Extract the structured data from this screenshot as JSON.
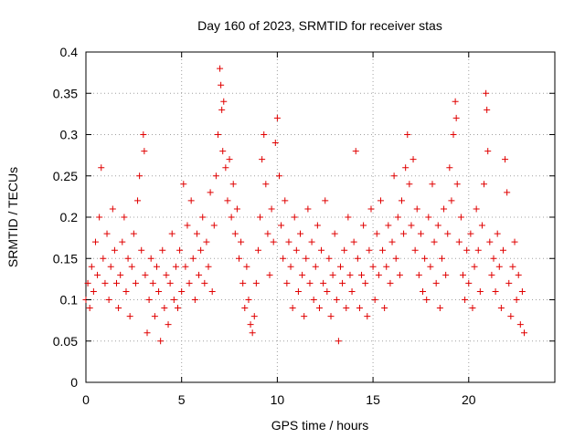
{
  "chart_data": {
    "type": "scatter",
    "title": "Day 160 of 2023, SRMTID for receiver stas",
    "xlabel": "GPS time / hours",
    "ylabel": "SRMTID / TECUs",
    "xlim": [
      0,
      24.5
    ],
    "ylim": [
      0,
      0.4
    ],
    "xticks": [
      0,
      5,
      10,
      15,
      20
    ],
    "xtick_labels": [
      "0",
      "5",
      "10",
      "15",
      "20"
    ],
    "yticks": [
      0,
      0.05,
      0.1,
      0.15,
      0.2,
      0.25,
      0.3,
      0.35,
      0.4
    ],
    "ytick_labels": [
      "0",
      "0.05",
      "0.1",
      "0.15",
      "0.2",
      "0.25",
      "0.3",
      "0.35",
      "0.4"
    ],
    "grid": true,
    "marker": "+",
    "color": "#e00000",
    "series": [
      {
        "name": "SRMTID",
        "points": [
          [
            0.0,
            0.1
          ],
          [
            0.1,
            0.12
          ],
          [
            0.2,
            0.09
          ],
          [
            0.3,
            0.14
          ],
          [
            0.4,
            0.11
          ],
          [
            0.5,
            0.17
          ],
          [
            0.6,
            0.13
          ],
          [
            0.7,
            0.2
          ],
          [
            0.8,
            0.26
          ],
          [
            0.9,
            0.15
          ],
          [
            1.0,
            0.12
          ],
          [
            1.1,
            0.18
          ],
          [
            1.2,
            0.1
          ],
          [
            1.3,
            0.14
          ],
          [
            1.4,
            0.21
          ],
          [
            1.5,
            0.16
          ],
          [
            1.6,
            0.12
          ],
          [
            1.7,
            0.09
          ],
          [
            1.8,
            0.13
          ],
          [
            1.9,
            0.17
          ],
          [
            2.0,
            0.2
          ],
          [
            2.1,
            0.11
          ],
          [
            2.2,
            0.15
          ],
          [
            2.3,
            0.08
          ],
          [
            2.4,
            0.14
          ],
          [
            2.5,
            0.18
          ],
          [
            2.6,
            0.12
          ],
          [
            2.7,
            0.22
          ],
          [
            2.8,
            0.25
          ],
          [
            2.9,
            0.16
          ],
          [
            3.0,
            0.3
          ],
          [
            3.05,
            0.28
          ],
          [
            3.1,
            0.13
          ],
          [
            3.2,
            0.06
          ],
          [
            3.3,
            0.1
          ],
          [
            3.4,
            0.15
          ],
          [
            3.5,
            0.12
          ],
          [
            3.6,
            0.08
          ],
          [
            3.7,
            0.14
          ],
          [
            3.8,
            0.11
          ],
          [
            3.9,
            0.05
          ],
          [
            4.0,
            0.16
          ],
          [
            4.1,
            0.09
          ],
          [
            4.2,
            0.13
          ],
          [
            4.3,
            0.07
          ],
          [
            4.4,
            0.12
          ],
          [
            4.5,
            0.18
          ],
          [
            4.6,
            0.1
          ],
          [
            4.7,
            0.14
          ],
          [
            4.8,
            0.09
          ],
          [
            4.9,
            0.16
          ],
          [
            5.0,
            0.11
          ],
          [
            5.1,
            0.24
          ],
          [
            5.2,
            0.14
          ],
          [
            5.3,
            0.19
          ],
          [
            5.4,
            0.12
          ],
          [
            5.5,
            0.22
          ],
          [
            5.6,
            0.15
          ],
          [
            5.7,
            0.1
          ],
          [
            5.8,
            0.18
          ],
          [
            5.9,
            0.13
          ],
          [
            6.0,
            0.16
          ],
          [
            6.1,
            0.2
          ],
          [
            6.2,
            0.12
          ],
          [
            6.3,
            0.17
          ],
          [
            6.4,
            0.14
          ],
          [
            6.5,
            0.23
          ],
          [
            6.6,
            0.11
          ],
          [
            6.7,
            0.19
          ],
          [
            6.8,
            0.25
          ],
          [
            6.9,
            0.3
          ],
          [
            7.0,
            0.38
          ],
          [
            7.05,
            0.36
          ],
          [
            7.1,
            0.33
          ],
          [
            7.15,
            0.28
          ],
          [
            7.2,
            0.34
          ],
          [
            7.3,
            0.26
          ],
          [
            7.4,
            0.22
          ],
          [
            7.5,
            0.27
          ],
          [
            7.6,
            0.2
          ],
          [
            7.7,
            0.24
          ],
          [
            7.8,
            0.18
          ],
          [
            7.9,
            0.21
          ],
          [
            8.0,
            0.15
          ],
          [
            8.1,
            0.17
          ],
          [
            8.2,
            0.12
          ],
          [
            8.3,
            0.09
          ],
          [
            8.4,
            0.14
          ],
          [
            8.5,
            0.1
          ],
          [
            8.6,
            0.07
          ],
          [
            8.7,
            0.06
          ],
          [
            8.8,
            0.08
          ],
          [
            8.9,
            0.12
          ],
          [
            9.0,
            0.16
          ],
          [
            9.1,
            0.2
          ],
          [
            9.2,
            0.27
          ],
          [
            9.3,
            0.3
          ],
          [
            9.4,
            0.24
          ],
          [
            9.5,
            0.18
          ],
          [
            9.6,
            0.13
          ],
          [
            9.7,
            0.21
          ],
          [
            9.8,
            0.17
          ],
          [
            9.9,
            0.29
          ],
          [
            10.0,
            0.32
          ],
          [
            10.1,
            0.25
          ],
          [
            10.2,
            0.19
          ],
          [
            10.3,
            0.15
          ],
          [
            10.4,
            0.22
          ],
          [
            10.5,
            0.12
          ],
          [
            10.6,
            0.17
          ],
          [
            10.7,
            0.14
          ],
          [
            10.8,
            0.09
          ],
          [
            10.9,
            0.2
          ],
          [
            11.0,
            0.16
          ],
          [
            11.1,
            0.11
          ],
          [
            11.2,
            0.18
          ],
          [
            11.3,
            0.13
          ],
          [
            11.4,
            0.08
          ],
          [
            11.5,
            0.15
          ],
          [
            11.6,
            0.21
          ],
          [
            11.7,
            0.12
          ],
          [
            11.8,
            0.17
          ],
          [
            11.9,
            0.1
          ],
          [
            12.0,
            0.14
          ],
          [
            12.1,
            0.19
          ],
          [
            12.2,
            0.09
          ],
          [
            12.3,
            0.16
          ],
          [
            12.4,
            0.12
          ],
          [
            12.5,
            0.22
          ],
          [
            12.6,
            0.11
          ],
          [
            12.7,
            0.15
          ],
          [
            12.8,
            0.08
          ],
          [
            12.9,
            0.13
          ],
          [
            13.0,
            0.18
          ],
          [
            13.1,
            0.1
          ],
          [
            13.2,
            0.05
          ],
          [
            13.3,
            0.14
          ],
          [
            13.4,
            0.12
          ],
          [
            13.5,
            0.16
          ],
          [
            13.6,
            0.09
          ],
          [
            13.7,
            0.2
          ],
          [
            13.8,
            0.13
          ],
          [
            13.9,
            0.11
          ],
          [
            14.0,
            0.17
          ],
          [
            14.1,
            0.28
          ],
          [
            14.2,
            0.15
          ],
          [
            14.3,
            0.09
          ],
          [
            14.4,
            0.13
          ],
          [
            14.5,
            0.19
          ],
          [
            14.6,
            0.12
          ],
          [
            14.7,
            0.08
          ],
          [
            14.8,
            0.16
          ],
          [
            14.9,
            0.21
          ],
          [
            15.0,
            0.14
          ],
          [
            15.1,
            0.1
          ],
          [
            15.2,
            0.18
          ],
          [
            15.3,
            0.13
          ],
          [
            15.4,
            0.22
          ],
          [
            15.5,
            0.16
          ],
          [
            15.6,
            0.09
          ],
          [
            15.7,
            0.14
          ],
          [
            15.8,
            0.19
          ],
          [
            15.9,
            0.12
          ],
          [
            16.0,
            0.17
          ],
          [
            16.1,
            0.25
          ],
          [
            16.2,
            0.15
          ],
          [
            16.3,
            0.2
          ],
          [
            16.4,
            0.13
          ],
          [
            16.5,
            0.22
          ],
          [
            16.6,
            0.18
          ],
          [
            16.7,
            0.26
          ],
          [
            16.8,
            0.3
          ],
          [
            16.9,
            0.24
          ],
          [
            17.0,
            0.19
          ],
          [
            17.1,
            0.27
          ],
          [
            17.2,
            0.16
          ],
          [
            17.3,
            0.21
          ],
          [
            17.4,
            0.13
          ],
          [
            17.5,
            0.18
          ],
          [
            17.6,
            0.11
          ],
          [
            17.7,
            0.15
          ],
          [
            17.8,
            0.1
          ],
          [
            17.9,
            0.2
          ],
          [
            18.0,
            0.14
          ],
          [
            18.1,
            0.24
          ],
          [
            18.2,
            0.17
          ],
          [
            18.3,
            0.12
          ],
          [
            18.4,
            0.19
          ],
          [
            18.5,
            0.09
          ],
          [
            18.6,
            0.15
          ],
          [
            18.7,
            0.21
          ],
          [
            18.8,
            0.13
          ],
          [
            18.9,
            0.18
          ],
          [
            19.0,
            0.26
          ],
          [
            19.1,
            0.22
          ],
          [
            19.2,
            0.3
          ],
          [
            19.3,
            0.34
          ],
          [
            19.35,
            0.32
          ],
          [
            19.4,
            0.24
          ],
          [
            19.5,
            0.17
          ],
          [
            19.6,
            0.2
          ],
          [
            19.7,
            0.13
          ],
          [
            19.8,
            0.1
          ],
          [
            19.9,
            0.16
          ],
          [
            20.0,
            0.12
          ],
          [
            20.1,
            0.18
          ],
          [
            20.2,
            0.09
          ],
          [
            20.3,
            0.14
          ],
          [
            20.4,
            0.21
          ],
          [
            20.5,
            0.16
          ],
          [
            20.6,
            0.11
          ],
          [
            20.7,
            0.19
          ],
          [
            20.8,
            0.24
          ],
          [
            20.9,
            0.35
          ],
          [
            20.95,
            0.33
          ],
          [
            21.0,
            0.28
          ],
          [
            21.1,
            0.17
          ],
          [
            21.2,
            0.13
          ],
          [
            21.3,
            0.15
          ],
          [
            21.4,
            0.11
          ],
          [
            21.5,
            0.18
          ],
          [
            21.6,
            0.14
          ],
          [
            21.7,
            0.09
          ],
          [
            21.8,
            0.16
          ],
          [
            21.9,
            0.27
          ],
          [
            22.0,
            0.23
          ],
          [
            22.1,
            0.12
          ],
          [
            22.2,
            0.08
          ],
          [
            22.3,
            0.14
          ],
          [
            22.4,
            0.17
          ],
          [
            22.5,
            0.1
          ],
          [
            22.6,
            0.13
          ],
          [
            22.7,
            0.07
          ],
          [
            22.8,
            0.11
          ],
          [
            22.9,
            0.06
          ]
        ]
      }
    ]
  }
}
